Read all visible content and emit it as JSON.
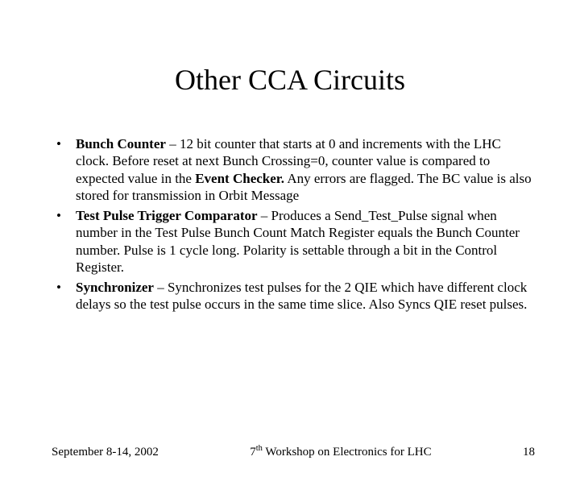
{
  "title": "Other CCA Circuits",
  "bullets": [
    {
      "term": "Bunch Counter",
      "body": " – 12 bit counter that starts at 0 and increments with the LHC clock.  Before reset at next Bunch Crossing=0, counter value is compared to expected value in the ",
      "bold2": "Event Checker.",
      "tail": " Any errors are flagged. The BC value is also stored for transmission in Orbit Message"
    },
    {
      "term": "Test Pulse Trigger Comparator",
      "body": " – Produces a Send_Test_Pulse signal when number in the Test Pulse Bunch Count Match Register equals the Bunch Counter number.  Pulse is 1 cycle long. Polarity is settable through a bit in the Control Register.",
      "bold2": "",
      "tail": ""
    },
    {
      "term": "Synchronizer",
      "body": " – Synchronizes test pulses for the 2 QIE which have different clock delays so the test pulse occurs in the same time slice. Also Syncs QIE reset pulses.",
      "bold2": "",
      "tail": ""
    }
  ],
  "footer": {
    "date": "September 8-14, 2002",
    "venue_pre": "7",
    "venue_sup": "th",
    "venue_post": " Workshop on Electronics for LHC",
    "page": "18"
  }
}
